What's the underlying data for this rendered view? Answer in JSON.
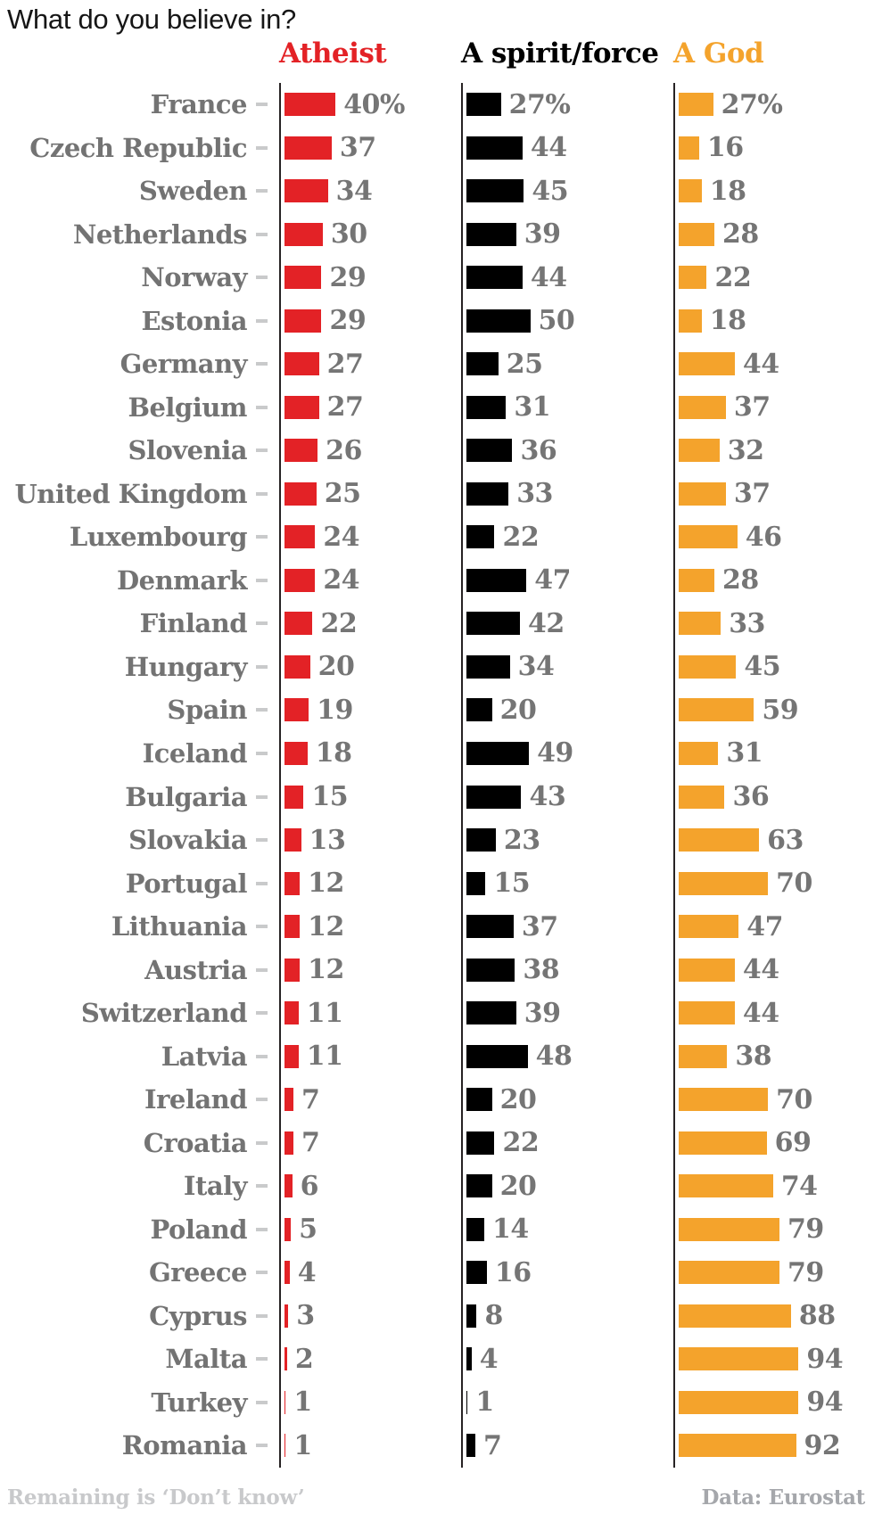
{
  "title": "What do you believe in?",
  "columns": [
    {
      "key": "atheist",
      "label": "Atheist",
      "color": "#e32226"
    },
    {
      "key": "spirit",
      "label": "A spirit/force",
      "color": "#000000"
    },
    {
      "key": "god",
      "label": "A God",
      "color": "#f4a32c"
    }
  ],
  "rows": [
    {
      "country": "France",
      "values": [
        40,
        27,
        27
      ],
      "labels": [
        "40%",
        "27%",
        "27%"
      ]
    },
    {
      "country": "Czech Republic",
      "values": [
        37,
        44,
        16
      ],
      "labels": [
        "37",
        "44",
        "16"
      ]
    },
    {
      "country": "Sweden",
      "values": [
        34,
        45,
        18
      ],
      "labels": [
        "34",
        "45",
        "18"
      ]
    },
    {
      "country": "Netherlands",
      "values": [
        30,
        39,
        28
      ],
      "labels": [
        "30",
        "39",
        "28"
      ]
    },
    {
      "country": "Norway",
      "values": [
        29,
        44,
        22
      ],
      "labels": [
        "29",
        "44",
        "22"
      ]
    },
    {
      "country": "Estonia",
      "values": [
        29,
        50,
        18
      ],
      "labels": [
        "29",
        "50",
        "18"
      ]
    },
    {
      "country": "Germany",
      "values": [
        27,
        25,
        44
      ],
      "labels": [
        "27",
        "25",
        "44"
      ]
    },
    {
      "country": "Belgium",
      "values": [
        27,
        31,
        37
      ],
      "labels": [
        "27",
        "31",
        "37"
      ]
    },
    {
      "country": "Slovenia",
      "values": [
        26,
        36,
        32
      ],
      "labels": [
        "26",
        "36",
        "32"
      ]
    },
    {
      "country": "United Kingdom",
      "values": [
        25,
        33,
        37
      ],
      "labels": [
        "25",
        "33",
        "37"
      ]
    },
    {
      "country": "Luxembourg",
      "values": [
        24,
        22,
        46
      ],
      "labels": [
        "24",
        "22",
        "46"
      ]
    },
    {
      "country": "Denmark",
      "values": [
        24,
        47,
        28
      ],
      "labels": [
        "24",
        "47",
        "28"
      ]
    },
    {
      "country": "Finland",
      "values": [
        22,
        42,
        33
      ],
      "labels": [
        "22",
        "42",
        "33"
      ]
    },
    {
      "country": "Hungary",
      "values": [
        20,
        34,
        45
      ],
      "labels": [
        "20",
        "34",
        "45"
      ]
    },
    {
      "country": "Spain",
      "values": [
        19,
        20,
        59
      ],
      "labels": [
        "19",
        "20",
        "59"
      ]
    },
    {
      "country": "Iceland",
      "values": [
        18,
        49,
        31
      ],
      "labels": [
        "18",
        "49",
        "31"
      ]
    },
    {
      "country": "Bulgaria",
      "values": [
        15,
        43,
        36
      ],
      "labels": [
        "15",
        "43",
        "36"
      ]
    },
    {
      "country": "Slovakia",
      "values": [
        13,
        23,
        63
      ],
      "labels": [
        "13",
        "23",
        "63"
      ]
    },
    {
      "country": "Portugal",
      "values": [
        12,
        15,
        70
      ],
      "labels": [
        "12",
        "15",
        "70"
      ]
    },
    {
      "country": "Lithuania",
      "values": [
        12,
        37,
        47
      ],
      "labels": [
        "12",
        "37",
        "47"
      ]
    },
    {
      "country": "Austria",
      "values": [
        12,
        38,
        44
      ],
      "labels": [
        "12",
        "38",
        "44"
      ]
    },
    {
      "country": "Switzerland",
      "values": [
        11,
        39,
        44
      ],
      "labels": [
        "11",
        "39",
        "44"
      ]
    },
    {
      "country": "Latvia",
      "values": [
        11,
        48,
        38
      ],
      "labels": [
        "11",
        "48",
        "38"
      ]
    },
    {
      "country": "Ireland",
      "values": [
        7,
        20,
        70
      ],
      "labels": [
        "7",
        "20",
        "70"
      ]
    },
    {
      "country": "Croatia",
      "values": [
        7,
        22,
        69
      ],
      "labels": [
        "7",
        "22",
        "69"
      ]
    },
    {
      "country": "Italy",
      "values": [
        6,
        20,
        74
      ],
      "labels": [
        "6",
        "20",
        "74"
      ]
    },
    {
      "country": "Poland",
      "values": [
        5,
        14,
        79
      ],
      "labels": [
        "5",
        "14",
        "79"
      ]
    },
    {
      "country": "Greece",
      "values": [
        4,
        16,
        79
      ],
      "labels": [
        "4",
        "16",
        "79"
      ]
    },
    {
      "country": "Cyprus",
      "values": [
        3,
        8,
        88
      ],
      "labels": [
        "3",
        "8",
        "88"
      ]
    },
    {
      "country": "Malta",
      "values": [
        2,
        4,
        94
      ],
      "labels": [
        "2",
        "4",
        "94"
      ]
    },
    {
      "country": "Turkey",
      "values": [
        1,
        1,
        94
      ],
      "labels": [
        "1",
        "1",
        "94"
      ]
    },
    {
      "country": "Romania",
      "values": [
        1,
        7,
        92
      ],
      "labels": [
        "1",
        "7",
        "92"
      ]
    }
  ],
  "footer": {
    "left": "Remaining is ‘Don’t know’",
    "right": "Data: Eurostat"
  },
  "chart_data": {
    "type": "bar",
    "orientation": "horizontal",
    "title": "What do you believe in?",
    "categories": [
      "France",
      "Czech Republic",
      "Sweden",
      "Netherlands",
      "Norway",
      "Estonia",
      "Germany",
      "Belgium",
      "Slovenia",
      "United Kingdom",
      "Luxembourg",
      "Denmark",
      "Finland",
      "Hungary",
      "Spain",
      "Iceland",
      "Bulgaria",
      "Slovakia",
      "Portugal",
      "Lithuania",
      "Austria",
      "Switzerland",
      "Latvia",
      "Ireland",
      "Croatia",
      "Italy",
      "Poland",
      "Greece",
      "Cyprus",
      "Malta",
      "Turkey",
      "Romania"
    ],
    "series": [
      {
        "name": "Atheist",
        "color": "#e32226",
        "values": [
          40,
          37,
          34,
          30,
          29,
          29,
          27,
          27,
          26,
          25,
          24,
          24,
          22,
          20,
          19,
          18,
          15,
          13,
          12,
          12,
          12,
          11,
          11,
          7,
          7,
          6,
          5,
          4,
          3,
          2,
          1,
          1
        ]
      },
      {
        "name": "A spirit/force",
        "color": "#000000",
        "values": [
          27,
          44,
          45,
          39,
          44,
          50,
          25,
          31,
          36,
          33,
          22,
          47,
          42,
          34,
          20,
          49,
          43,
          23,
          15,
          37,
          38,
          39,
          48,
          20,
          22,
          20,
          14,
          16,
          8,
          4,
          1,
          7
        ]
      },
      {
        "name": "A God",
        "color": "#f4a32c",
        "values": [
          27,
          16,
          18,
          28,
          22,
          18,
          44,
          37,
          32,
          37,
          46,
          28,
          33,
          45,
          59,
          31,
          36,
          63,
          70,
          47,
          44,
          44,
          38,
          70,
          69,
          74,
          79,
          79,
          88,
          94,
          94,
          92
        ]
      }
    ],
    "unit": "%",
    "xlabel": "",
    "ylabel": "",
    "value_range": [
      0,
      100
    ],
    "grid": false,
    "legend_position": "top",
    "notes": [
      "Remaining is ‘Don’t know’",
      "Data: Eurostat"
    ]
  }
}
